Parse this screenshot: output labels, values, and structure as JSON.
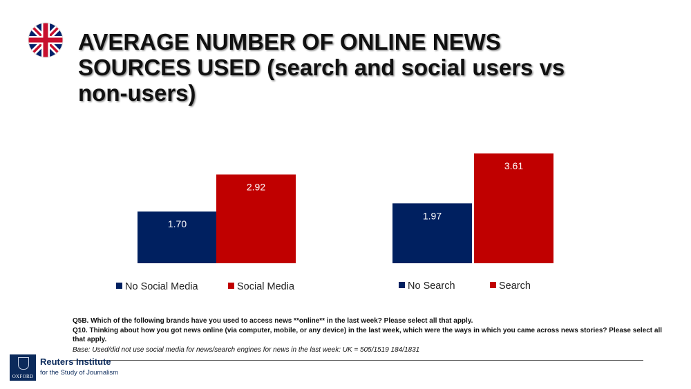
{
  "header": {
    "title_lines": [
      "AVERAGE NUMBER OF ONLINE NEWS",
      "SOURCES USED (search and social users vs",
      "non-users)"
    ],
    "flag": "uk-flag-icon"
  },
  "colors": {
    "navy": "#002060",
    "red": "#c00000"
  },
  "chart_data": [
    {
      "type": "bar",
      "categories": [
        "No Social Media",
        "Social Media"
      ],
      "values": [
        1.7,
        2.92
      ],
      "value_labels": [
        "1.70",
        "2.92"
      ],
      "colors": [
        "#002060",
        "#c00000"
      ],
      "legend": [
        "No Social Media",
        "Social Media"
      ],
      "ylim": [
        0,
        4
      ]
    },
    {
      "type": "bar",
      "categories": [
        "No Search",
        "Search"
      ],
      "values": [
        1.97,
        3.61
      ],
      "value_labels": [
        "1.97",
        "3.61"
      ],
      "colors": [
        "#002060",
        "#c00000"
      ],
      "legend": [
        "No Search",
        "Search"
      ],
      "ylim": [
        0,
        4
      ]
    }
  ],
  "notes": {
    "q5b": "Q5B. Which of the following brands have you used to access news **online** in the last week? Please select all that apply.",
    "q10": "Q10. Thinking about how you got news online (via computer, mobile, or any device) in the last week, which were the ways in which you came across news stories? Please select all that apply.",
    "base": "Base: Used/did not use social media for news/search engines for news in the last week:  UK = 505/1519 184/1831"
  },
  "logo": {
    "crest_text": "OXFORD",
    "name": "Reuters Institute",
    "subtitle": "for the Study of Journalism"
  }
}
